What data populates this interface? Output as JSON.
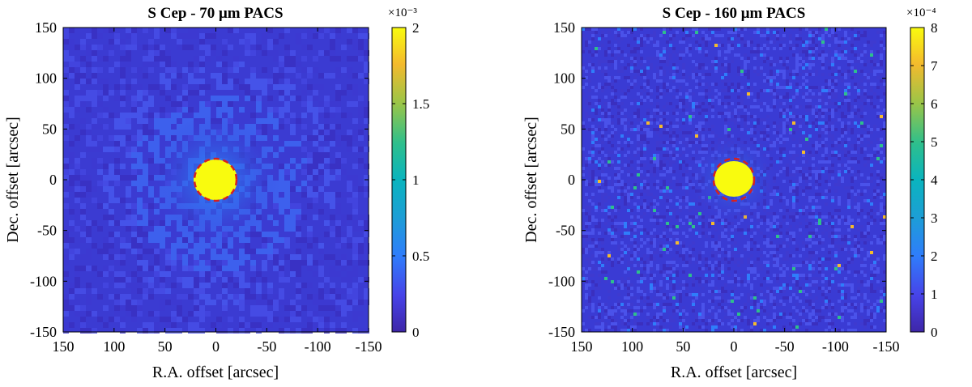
{
  "chart_data": [
    {
      "type": "heatmap",
      "title": "S Cep - 70 μm PACS",
      "xlabel": "R.A. offset [arcsec]",
      "ylabel": "Dec. offset [arcsec]",
      "xlim": [
        150,
        -150
      ],
      "ylim": [
        -150,
        150
      ],
      "x_ticks": [
        "150",
        "100",
        "50",
        "0",
        "-50",
        "-100",
        "-150"
      ],
      "y_ticks": [
        "150",
        "100",
        "50",
        "0",
        "-50",
        "-100",
        "-150"
      ],
      "colorbar": {
        "range": [
          0,
          0.002
        ],
        "multiplier": "×10⁻³",
        "ticks": [
          "2",
          "1.5",
          "1",
          "0.5",
          "0"
        ]
      },
      "aperture_radius_arcsec": 20,
      "source_center": [
        0,
        0
      ],
      "colormap": "parula",
      "aperture_color": "#d62020"
    },
    {
      "type": "heatmap",
      "title": "S Cep - 160 μm PACS",
      "xlabel": "R.A. offset [arcsec]",
      "ylabel": "Dec. offset [arcsec]",
      "xlim": [
        150,
        -150
      ],
      "ylim": [
        -150,
        150
      ],
      "x_ticks": [
        "150",
        "100",
        "50",
        "0",
        "-50",
        "-100",
        "-150"
      ],
      "y_ticks": [
        "150",
        "100",
        "50",
        "0",
        "-50",
        "-100",
        "-150"
      ],
      "colorbar": {
        "range": [
          0,
          0.0008
        ],
        "multiplier": "×10⁻⁴",
        "ticks": [
          "8",
          "7",
          "6",
          "5",
          "4",
          "3",
          "2",
          "1",
          "0"
        ]
      },
      "aperture_radius_arcsec": 20,
      "source_center": [
        0,
        0
      ],
      "colormap": "parula",
      "aperture_color": "#d62020"
    }
  ]
}
